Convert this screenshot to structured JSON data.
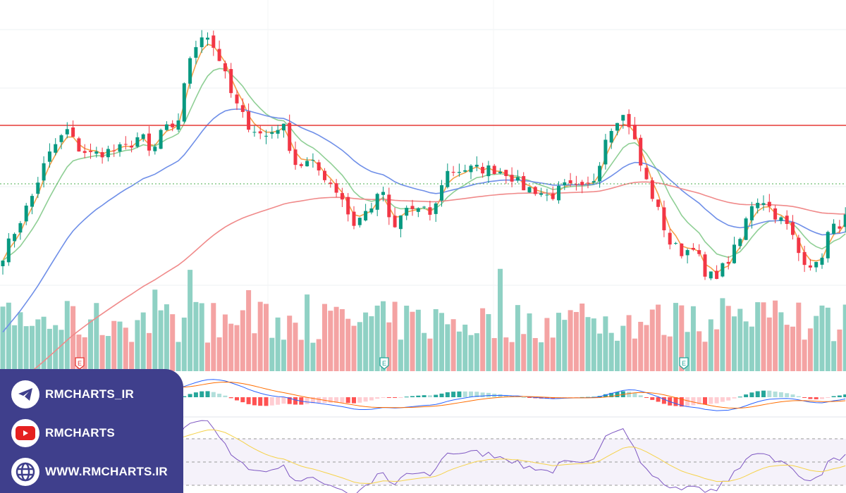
{
  "chart_data": {
    "type": "candlestick",
    "title": "",
    "grid": true,
    "note_scale": "relative price units (no axis printed)",
    "key_closes": [
      [
        0,
        7.5
      ],
      [
        20,
        17.5
      ],
      [
        45,
        30
      ],
      [
        60,
        40
      ],
      [
        75,
        47.5
      ],
      [
        95,
        53.75
      ],
      [
        110,
        47.5
      ],
      [
        130,
        45
      ],
      [
        150,
        46.25
      ],
      [
        180,
        47.5
      ],
      [
        200,
        52.5
      ],
      [
        215,
        43.75
      ],
      [
        230,
        55
      ],
      [
        250,
        52.5
      ],
      [
        260,
        70
      ],
      [
        275,
        82.5
      ],
      [
        290,
        90
      ],
      [
        297,
        86
      ],
      [
        310,
        80
      ],
      [
        330,
        65
      ],
      [
        350,
        56.25
      ],
      [
        375,
        51.25
      ],
      [
        400,
        56.25
      ],
      [
        420,
        41.25
      ],
      [
        440,
        42.5
      ],
      [
        465,
        36.25
      ],
      [
        485,
        30
      ],
      [
        500,
        20
      ],
      [
        520,
        25
      ],
      [
        545,
        32.5
      ],
      [
        555,
        16.25
      ],
      [
        575,
        26.25
      ],
      [
        600,
        25
      ],
      [
        615,
        23.75
      ],
      [
        630,
        38.75
      ],
      [
        660,
        40
      ],
      [
        680,
        40
      ],
      [
        700,
        40
      ],
      [
        720,
        38.75
      ],
      [
        740,
        33.75
      ],
      [
        760,
        32.5
      ],
      [
        780,
        30
      ],
      [
        800,
        33.75
      ],
      [
        830,
        32.5
      ],
      [
        845,
        37.5
      ],
      [
        860,
        52.5
      ],
      [
        880,
        60
      ],
      [
        895,
        55
      ],
      [
        910,
        40
      ],
      [
        930,
        27.5
      ],
      [
        950,
        13.75
      ],
      [
        970,
        10
      ],
      [
        985,
        13.75
      ],
      [
        1000,
        1.25
      ],
      [
        1015,
        2.5
      ],
      [
        1030,
        6.25
      ],
      [
        1050,
        15
      ],
      [
        1065,
        27.5
      ],
      [
        1080,
        30
      ],
      [
        1100,
        23.75
      ],
      [
        1120,
        18.75
      ],
      [
        1135,
        8.75
      ],
      [
        1160,
        5
      ],
      [
        1175,
        17.5
      ],
      [
        1200,
        22.5
      ]
    ],
    "horizontal_lines": [
      {
        "level": 55.5,
        "color": "#e53935",
        "style": "solid"
      },
      {
        "level": 34.75,
        "color": "#4caf50",
        "style": "dotted"
      }
    ],
    "moving_averages": [
      {
        "color": "#f5a04a"
      },
      {
        "color": "#8fcf95"
      },
      {
        "color": "#6f8fe8"
      },
      {
        "color": "#f08a8a"
      }
    ],
    "earnings_markers": [
      {
        "label": "E",
        "color": "#e53935",
        "at": 113
      },
      {
        "label": "E",
        "color": "#26a69a",
        "at": 545
      },
      {
        "label": "E",
        "color": "#26a69a",
        "at": 970
      }
    ],
    "colors": {
      "up": "#089981",
      "down": "#f23645",
      "vol_up": "#8fd1c4",
      "vol_down": "#f4a3a3"
    },
    "indicators": [
      "MACD",
      "RSI"
    ]
  },
  "overlay": {
    "background": "#3f3f8c",
    "items": [
      {
        "icon": "telegram-icon",
        "label": "RMCHARTS_IR"
      },
      {
        "icon": "youtube-icon",
        "label": "RMCHARTS"
      },
      {
        "icon": "globe-icon",
        "label": "WWW.RMCHARTS.IR"
      }
    ]
  }
}
